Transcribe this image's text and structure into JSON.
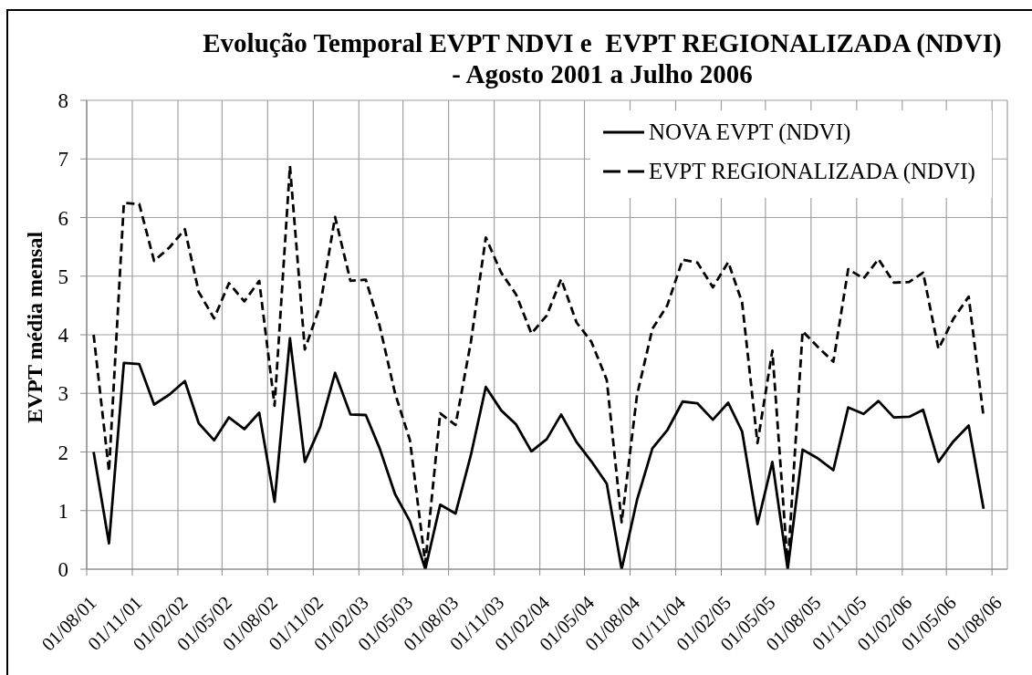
{
  "chart_data": {
    "type": "line",
    "title": "Evolução Temporal EVPT NDVI e  EVPT REGIONALIZADA (NDVI)\n- Agosto 2001 a Julho 2006",
    "ylabel": "EVPT média mensal",
    "x": [
      "2001-08-15",
      "2001-09-15",
      "2001-10-15",
      "2001-11-15",
      "2001-12-15",
      "2002-01-15",
      "2002-02-15",
      "2002-03-15",
      "2002-04-15",
      "2002-05-15",
      "2002-06-15",
      "2002-07-15",
      "2002-08-15",
      "2002-09-15",
      "2002-10-15",
      "2002-11-15",
      "2002-12-15",
      "2003-01-15",
      "2003-02-15",
      "2003-03-15",
      "2003-04-15",
      "2003-05-15",
      "2003-06-15",
      "2003-07-15",
      "2003-08-15",
      "2003-09-15",
      "2003-10-15",
      "2003-11-15",
      "2003-12-15",
      "2004-01-15",
      "2004-02-15",
      "2004-03-15",
      "2004-04-15",
      "2004-05-15",
      "2004-06-15",
      "2004-07-15",
      "2004-08-15",
      "2004-09-15",
      "2004-10-15",
      "2004-11-15",
      "2004-12-15",
      "2005-01-15",
      "2005-02-15",
      "2005-03-15",
      "2005-04-15",
      "2005-05-15",
      "2005-06-15",
      "2005-07-15",
      "2005-08-15",
      "2005-09-15",
      "2005-10-15",
      "2005-11-15",
      "2005-12-15",
      "2006-01-15",
      "2006-02-15",
      "2006-03-15",
      "2006-04-15",
      "2006-05-15",
      "2006-06-15",
      "2006-07-15"
    ],
    "xlim": [
      "2001-08-01",
      "2006-09-01"
    ],
    "xticks": [
      {
        "value": "2001-08-01",
        "label": "01/08/01"
      },
      {
        "value": "2001-11-01",
        "label": "01/11/01"
      },
      {
        "value": "2002-02-01",
        "label": "01/02/02"
      },
      {
        "value": "2002-05-01",
        "label": "01/05/02"
      },
      {
        "value": "2002-08-01",
        "label": "01/08/02"
      },
      {
        "value": "2002-11-01",
        "label": "01/11/02"
      },
      {
        "value": "2003-02-01",
        "label": "01/02/03"
      },
      {
        "value": "2003-05-01",
        "label": "01/05/03"
      },
      {
        "value": "2003-08-01",
        "label": "01/08/03"
      },
      {
        "value": "2003-11-01",
        "label": "01/11/03"
      },
      {
        "value": "2004-02-01",
        "label": "01/02/04"
      },
      {
        "value": "2004-05-01",
        "label": "01/05/04"
      },
      {
        "value": "2004-08-01",
        "label": "01/08/04"
      },
      {
        "value": "2004-11-01",
        "label": "01/11/04"
      },
      {
        "value": "2005-02-01",
        "label": "01/02/05"
      },
      {
        "value": "2005-05-01",
        "label": "01/05/05"
      },
      {
        "value": "2005-08-01",
        "label": "01/08/05"
      },
      {
        "value": "2005-11-01",
        "label": "01/11/05"
      },
      {
        "value": "2006-02-01",
        "label": "01/02/06"
      },
      {
        "value": "2006-05-01",
        "label": "01/05/06"
      },
      {
        "value": "2006-08-01",
        "label": "01/08/06"
      }
    ],
    "ylim": [
      0,
      8
    ],
    "yticks": [
      0,
      1,
      2,
      3,
      4,
      5,
      6,
      7,
      8
    ],
    "grid": true,
    "legend": "top right",
    "marker": "none",
    "series": [
      {
        "name": "NOVA EVPT (NDVI)",
        "color": "#000000",
        "line_style": "solid",
        "values": [
          2.0,
          0.44,
          3.52,
          3.5,
          2.81,
          2.98,
          3.21,
          2.49,
          2.2,
          2.59,
          2.39,
          2.67,
          1.15,
          3.94,
          1.83,
          2.43,
          3.35,
          2.64,
          2.63,
          2.06,
          1.28,
          0.82,
          0.0,
          1.1,
          0.95,
          1.95,
          3.11,
          2.71,
          2.47,
          2.01,
          2.22,
          2.64,
          2.17,
          1.84,
          1.46,
          0.0,
          1.18,
          2.06,
          2.37,
          2.86,
          2.83,
          2.55,
          2.84,
          2.35,
          0.77,
          1.83,
          0.0,
          2.04,
          1.89,
          1.69,
          2.76,
          2.65,
          2.87,
          2.59,
          2.6,
          2.72,
          1.83,
          2.18,
          2.45,
          1.03
        ]
      },
      {
        "name": "EVPT REGIONALIZADA (NDVI)",
        "color": "#000000",
        "line_style": "dashed",
        "values": [
          4.0,
          1.67,
          6.25,
          6.23,
          5.26,
          5.49,
          5.8,
          4.73,
          4.28,
          4.88,
          4.57,
          4.92,
          2.79,
          6.88,
          3.75,
          4.5,
          6.01,
          4.92,
          4.94,
          4.15,
          3.0,
          2.2,
          0.1,
          2.66,
          2.46,
          3.88,
          5.66,
          5.06,
          4.69,
          4.02,
          4.33,
          4.95,
          4.21,
          3.88,
          3.23,
          0.8,
          2.97,
          4.1,
          4.5,
          5.28,
          5.23,
          4.81,
          5.24,
          4.55,
          2.15,
          3.73,
          0.05,
          4.06,
          3.79,
          3.54,
          5.12,
          4.96,
          5.29,
          4.89,
          4.9,
          5.06,
          3.76,
          4.27,
          4.65,
          2.6
        ]
      }
    ]
  }
}
